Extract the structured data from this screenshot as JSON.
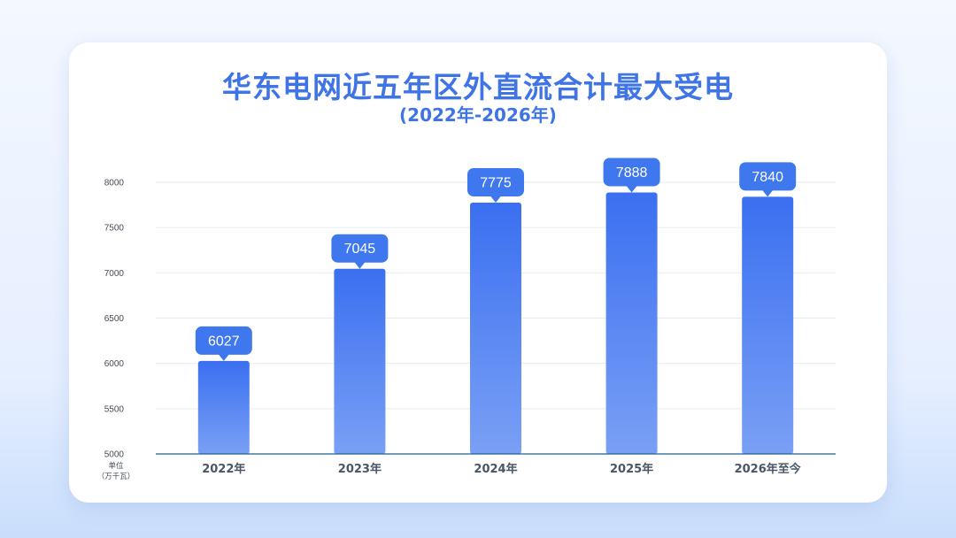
{
  "chart_data": {
    "type": "bar",
    "title": "华东电网近五年区外直流合计最大受电",
    "subtitle": "(2022年-2026年)",
    "categories": [
      "2022年",
      "2023年",
      "2024年",
      "2025年",
      "2026年至今"
    ],
    "values": [
      6027,
      7045,
      7775,
      7888,
      7840
    ],
    "ylim": [
      5000,
      8000
    ],
    "yticks": [
      5000,
      5500,
      6000,
      6500,
      7000,
      7500,
      8000
    ],
    "unit_line1": "单位",
    "unit_line2": "（万千瓦）",
    "grid": true,
    "legend": "none",
    "colors": {
      "bar_top": "#3a6ff0",
      "bar_bottom": "#7aa0f5",
      "label_bg": "#3f78ee",
      "axis": "#1f5f8f",
      "grid": "#e6ebf2",
      "title": "#3f74e6"
    }
  }
}
